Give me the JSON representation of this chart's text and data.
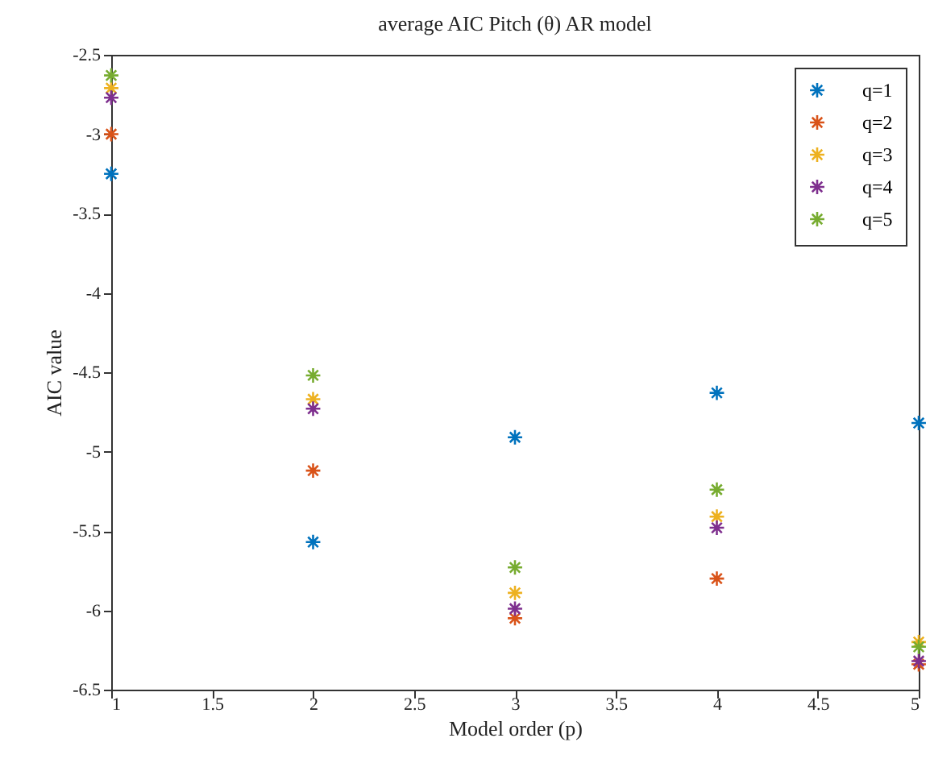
{
  "chart_data": {
    "type": "scatter",
    "title": "average AIC Pitch (θ) AR model",
    "xlabel": "Model order (p)",
    "ylabel": "AIC value",
    "x": [
      1,
      2,
      3,
      4,
      5
    ],
    "xlim": [
      1,
      5
    ],
    "xticks": [
      1,
      1.5,
      2,
      2.5,
      3,
      3.5,
      4,
      4.5,
      5
    ],
    "ylim": [
      -6.5,
      -2.5
    ],
    "yticks": [
      -6.5,
      -6,
      -5.5,
      -5,
      -4.5,
      -4,
      -3.5,
      -3,
      -2.5
    ],
    "grid": false,
    "legend": "top right",
    "marker": "cross",
    "series": [
      {
        "name": "q=1",
        "color": "#0072bd",
        "values": [
          -3.25,
          -5.57,
          -4.91,
          -4.63,
          -4.82
        ]
      },
      {
        "name": "q=2",
        "color": "#d95319",
        "values": [
          -3.0,
          -5.12,
          -6.05,
          -5.8,
          -6.34
        ]
      },
      {
        "name": "q=3",
        "color": "#edb120",
        "values": [
          -2.71,
          -4.67,
          -5.89,
          -5.41,
          -6.2
        ]
      },
      {
        "name": "q=4",
        "color": "#7e2f8e",
        "values": [
          -2.77,
          -4.73,
          -5.99,
          -5.48,
          -6.32
        ]
      },
      {
        "name": "q=5",
        "color": "#77ac30",
        "values": [
          -2.63,
          -4.52,
          -5.73,
          -5.24,
          -6.23
        ]
      }
    ]
  }
}
